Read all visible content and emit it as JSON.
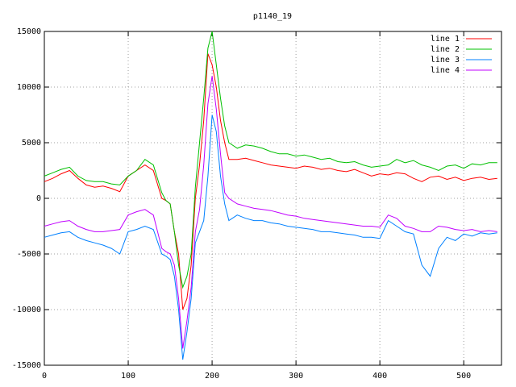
{
  "chart_data": {
    "type": "line",
    "title": "p1140_19",
    "x": [
      0,
      10,
      20,
      30,
      40,
      50,
      60,
      70,
      80,
      90,
      100,
      110,
      120,
      130,
      140,
      145,
      150,
      155,
      160,
      165,
      170,
      175,
      180,
      185,
      190,
      195,
      200,
      205,
      210,
      215,
      220,
      230,
      240,
      250,
      260,
      270,
      280,
      290,
      300,
      310,
      320,
      330,
      340,
      350,
      360,
      370,
      380,
      390,
      400,
      410,
      420,
      430,
      440,
      450,
      460,
      470,
      480,
      490,
      500,
      510,
      520,
      530,
      540
    ],
    "series": [
      {
        "name": "line 1",
        "color": "#ff0000",
        "values": [
          1500,
          1800,
          2200,
          2500,
          1800,
          1200,
          1000,
          1100,
          900,
          600,
          2000,
          2500,
          3000,
          2500,
          0,
          -200,
          -500,
          -3000,
          -5000,
          -10000,
          -9000,
          -6000,
          0,
          3000,
          7000,
          13000,
          12000,
          10000,
          7000,
          5000,
          3500,
          3500,
          3600,
          3400,
          3200,
          3000,
          2900,
          2800,
          2700,
          2900,
          2800,
          2600,
          2700,
          2500,
          2400,
          2600,
          2300,
          2000,
          2200,
          2100,
          2300,
          2200,
          1800,
          1500,
          1900,
          2000,
          1700,
          1900,
          1600,
          1800,
          1900,
          1700,
          1800
        ]
      },
      {
        "name": "line 2",
        "color": "#00c000",
        "values": [
          2000,
          2300,
          2600,
          2800,
          2000,
          1600,
          1500,
          1500,
          1300,
          1200,
          2000,
          2500,
          3500,
          3000,
          500,
          -200,
          -500,
          -3000,
          -6000,
          -8000,
          -7000,
          -5000,
          1000,
          5000,
          9000,
          13500,
          15000,
          12000,
          9000,
          6500,
          5000,
          4500,
          4800,
          4700,
          4500,
          4200,
          4000,
          4000,
          3800,
          3900,
          3700,
          3500,
          3600,
          3300,
          3200,
          3300,
          3000,
          2800,
          2900,
          3000,
          3500,
          3200,
          3400,
          3000,
          2800,
          2500,
          2900,
          3000,
          2700,
          3100,
          3000,
          3200,
          3200
        ]
      },
      {
        "name": "line 3",
        "color": "#0080ff",
        "values": [
          -3500,
          -3300,
          -3100,
          -3000,
          -3500,
          -3800,
          -4000,
          -4200,
          -4500,
          -5000,
          -3000,
          -2800,
          -2500,
          -2800,
          -5000,
          -5200,
          -5500,
          -7000,
          -10000,
          -14500,
          -12000,
          -9000,
          -4000,
          -3000,
          -2000,
          2000,
          7500,
          6000,
          2000,
          -500,
          -2000,
          -1500,
          -1800,
          -2000,
          -2000,
          -2200,
          -2300,
          -2500,
          -2600,
          -2700,
          -2800,
          -3000,
          -3000,
          -3100,
          -3200,
          -3300,
          -3500,
          -3500,
          -3600,
          -2000,
          -2500,
          -3000,
          -3200,
          -6000,
          -7000,
          -4500,
          -3500,
          -3800,
          -3200,
          -3400,
          -3100,
          -3200,
          -3100
        ]
      },
      {
        "name": "line 4",
        "color": "#c000ff",
        "values": [
          -2500,
          -2300,
          -2100,
          -2000,
          -2500,
          -2800,
          -3000,
          -3000,
          -2900,
          -2800,
          -1500,
          -1200,
          -1000,
          -1500,
          -4500,
          -4800,
          -5000,
          -6000,
          -9000,
          -13500,
          -11000,
          -8000,
          -3000,
          -1000,
          3000,
          8500,
          11000,
          8000,
          4000,
          500,
          0,
          -500,
          -700,
          -900,
          -1000,
          -1100,
          -1300,
          -1500,
          -1600,
          -1800,
          -1900,
          -2000,
          -2100,
          -2200,
          -2300,
          -2400,
          -2500,
          -2500,
          -2600,
          -1500,
          -1800,
          -2500,
          -2700,
          -3000,
          -3000,
          -2500,
          -2600,
          -2800,
          -2900,
          -2800,
          -3000,
          -2900,
          -3000
        ]
      }
    ],
    "xlim": [
      0,
      545
    ],
    "xticks": [
      0,
      100,
      200,
      300,
      400,
      500
    ],
    "ylim": [
      -15000,
      15000
    ],
    "yticks": [
      -15000,
      -10000,
      -5000,
      0,
      5000,
      10000,
      15000
    ],
    "grid": true,
    "legend": "top-right"
  }
}
